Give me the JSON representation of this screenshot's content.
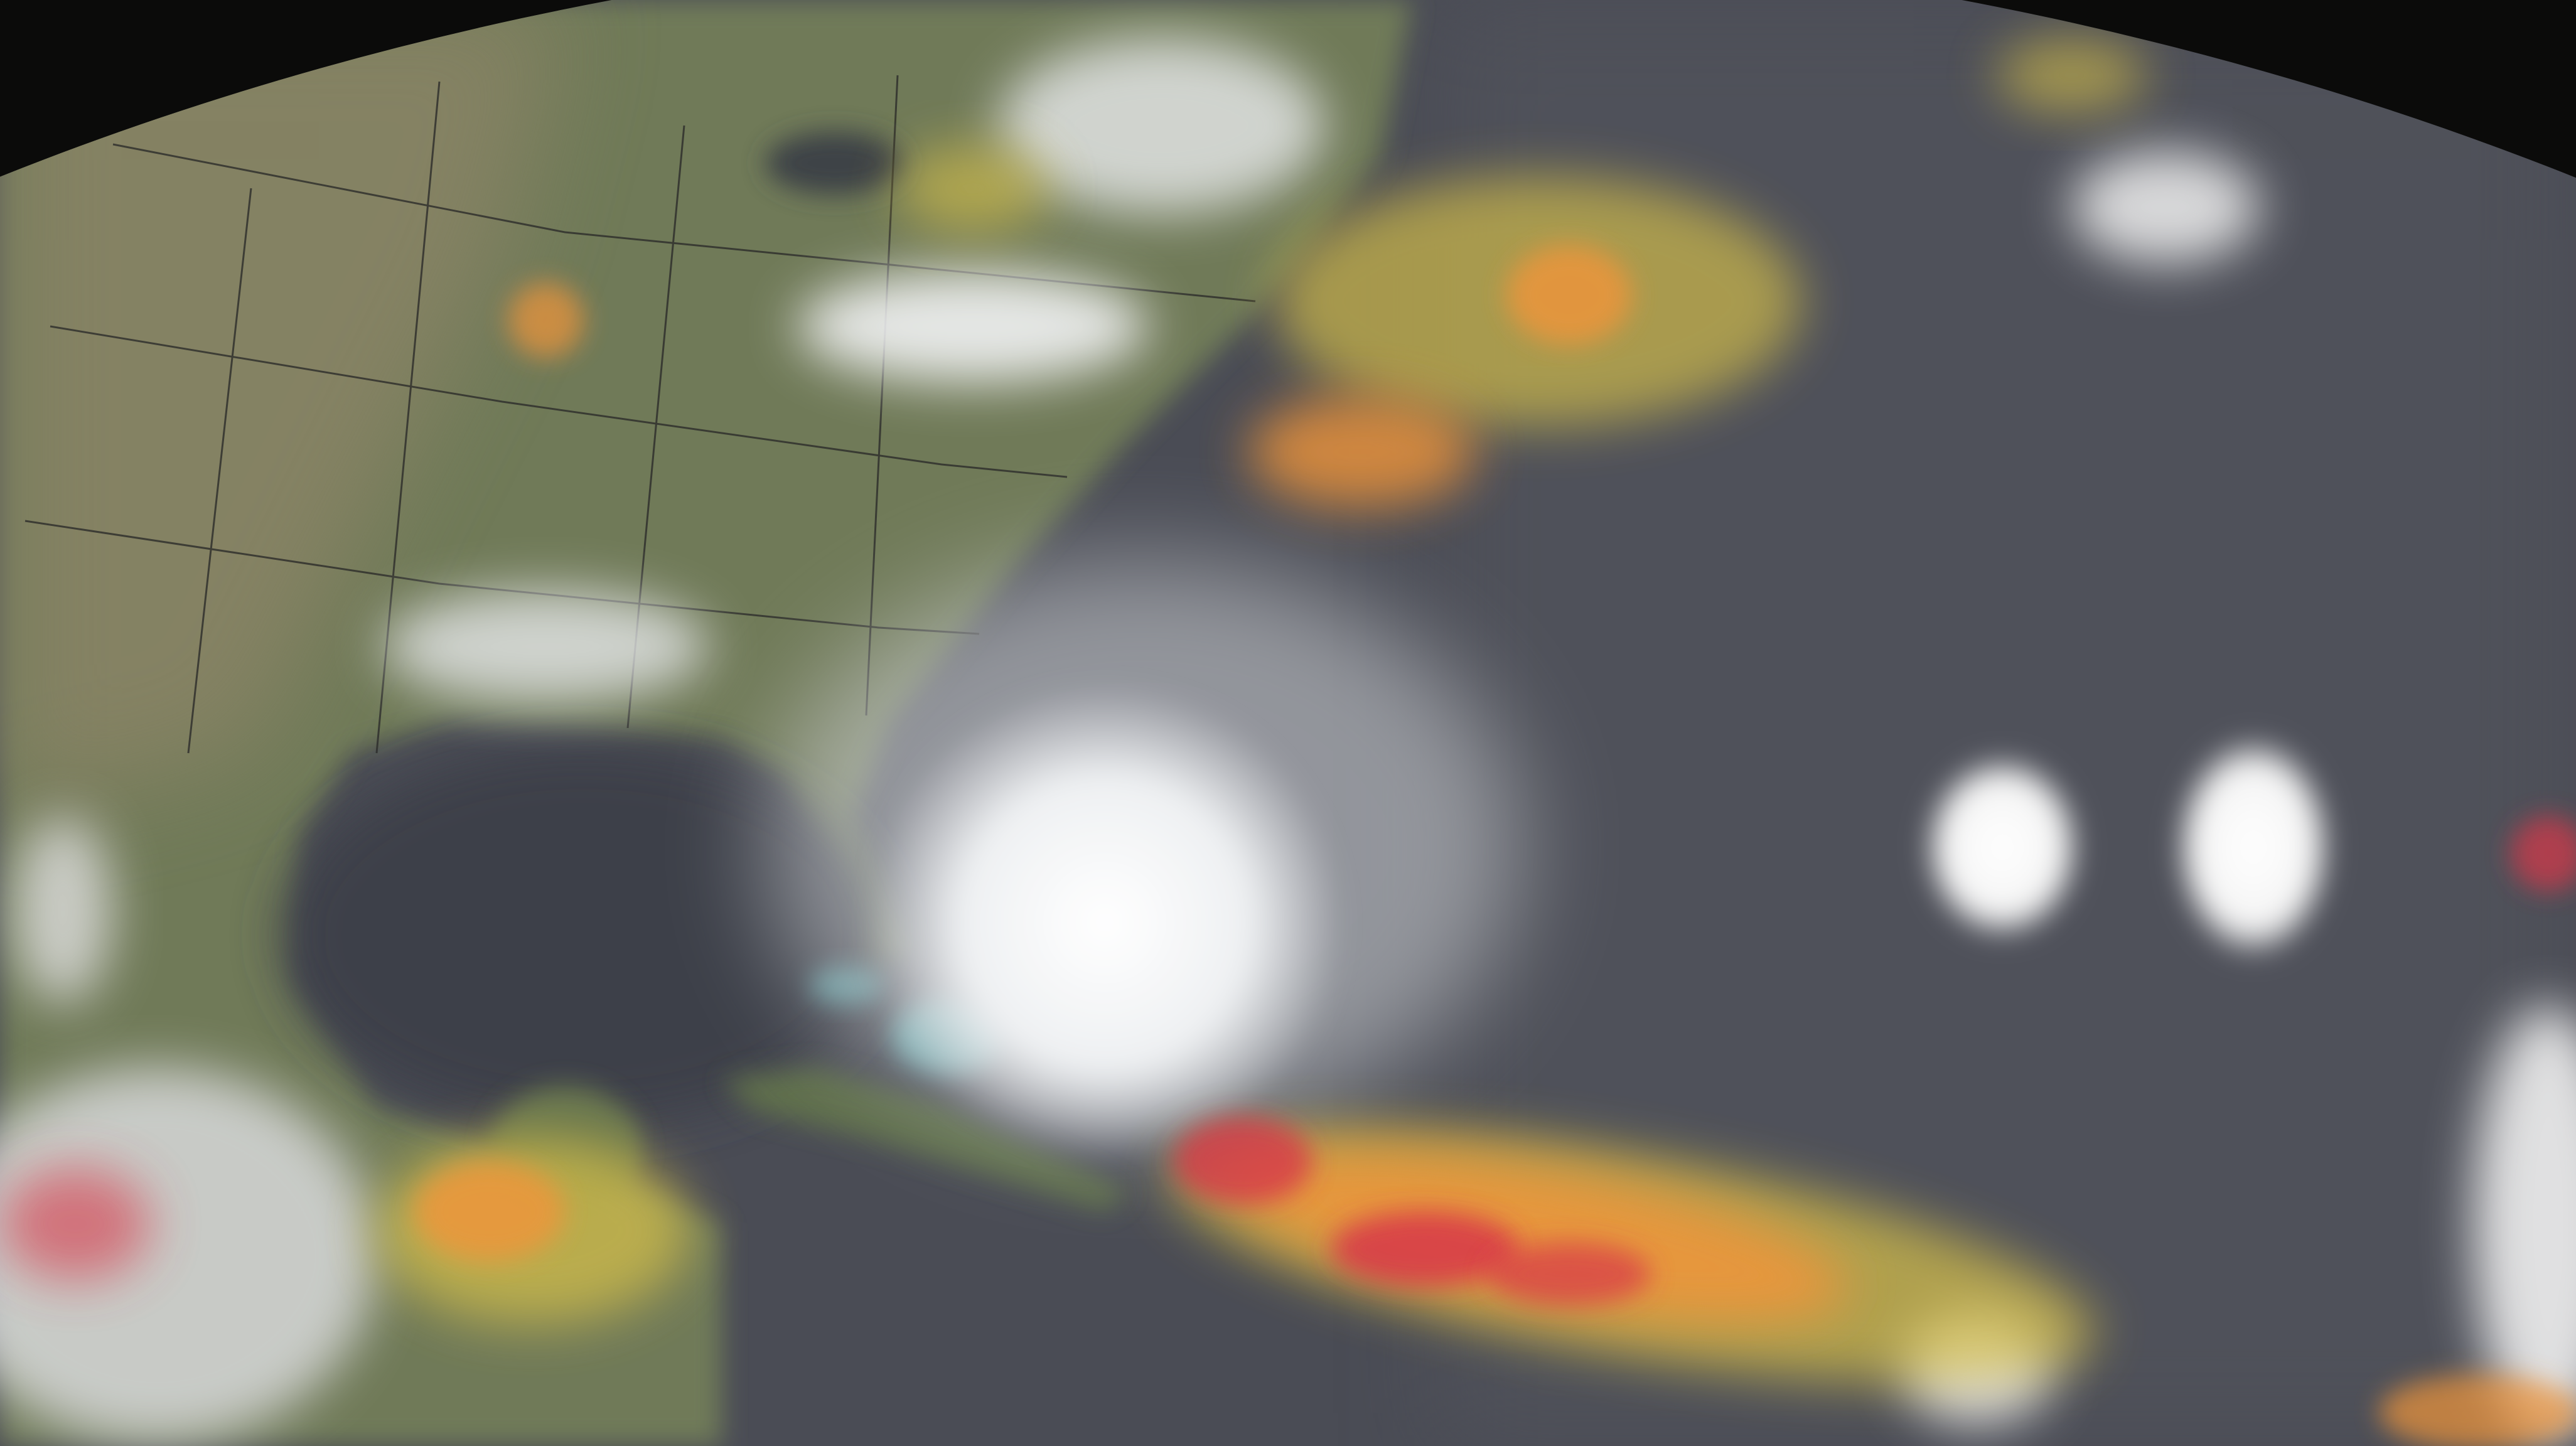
{
  "colors": {
    "space": "#0b0b0a",
    "ocean": "#4a4c55",
    "land": "#6f7a58",
    "land_dry": "#8a8466",
    "cloud": "#f2f3f4",
    "precip_light": "#d9c24a",
    "precip_mid": "#f0953a",
    "precip_heavy": "#d8384a",
    "shallow_water": "#6fc7c9",
    "border_lines": "#2c2c2a"
  }
}
